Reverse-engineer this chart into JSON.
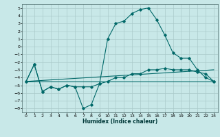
{
  "title": "",
  "xlabel": "Humidex (Indice chaleur)",
  "bg_color": "#c8e8e8",
  "grid_color": "#aacaca",
  "line_color": "#006868",
  "xlim": [
    -0.5,
    23.5
  ],
  "ylim": [
    -8.5,
    5.5
  ],
  "yticks": [
    5,
    4,
    3,
    2,
    1,
    0,
    -1,
    -2,
    -3,
    -4,
    -5,
    -6,
    -7,
    -8
  ],
  "xticks": [
    0,
    1,
    2,
    3,
    4,
    5,
    6,
    7,
    8,
    9,
    10,
    11,
    12,
    13,
    14,
    15,
    16,
    17,
    18,
    19,
    20,
    21,
    22,
    23
  ],
  "line1_x": [
    0,
    1,
    2,
    3,
    4,
    5,
    6,
    7,
    8,
    9,
    10,
    11,
    12,
    13,
    14,
    15,
    16,
    17,
    18,
    19,
    20,
    21,
    22,
    23
  ],
  "line1_y": [
    -4.5,
    -2.3,
    -5.8,
    -5.2,
    -5.5,
    -5.0,
    -5.2,
    -8.0,
    -7.5,
    -4.8,
    1.0,
    3.0,
    3.3,
    4.3,
    4.8,
    5.0,
    3.5,
    1.5,
    -0.8,
    -1.5,
    -1.5,
    -3.0,
    -4.0,
    -4.5
  ],
  "line2_x": [
    0,
    1,
    2,
    3,
    4,
    5,
    6,
    7,
    8,
    9,
    10,
    11,
    12,
    13,
    14,
    15,
    16,
    17,
    18,
    19,
    20,
    21,
    22,
    23
  ],
  "line2_y": [
    -4.5,
    -2.3,
    -5.8,
    -5.2,
    -5.5,
    -5.0,
    -5.2,
    -5.2,
    -5.2,
    -4.8,
    -4.5,
    -4.0,
    -4.0,
    -3.5,
    -3.5,
    -3.0,
    -3.0,
    -2.8,
    -3.0,
    -3.0,
    -3.0,
    -3.3,
    -3.5,
    -4.5
  ],
  "line3_x": [
    0,
    23
  ],
  "line3_y": [
    -4.5,
    -4.5
  ],
  "line4_x": [
    0,
    23
  ],
  "line4_y": [
    -4.5,
    -3.0
  ]
}
